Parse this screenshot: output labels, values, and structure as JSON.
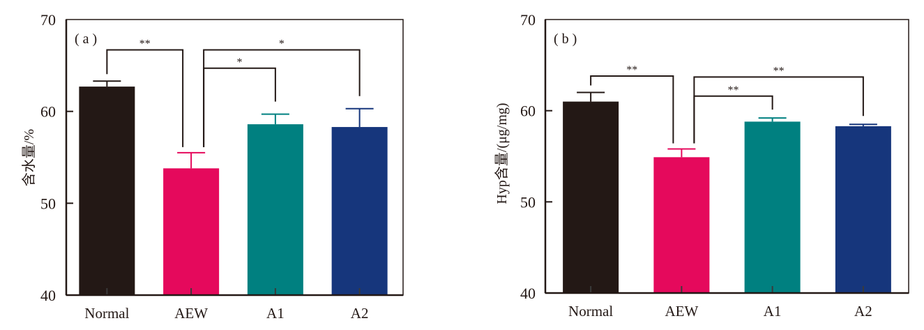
{
  "chart_data": [
    {
      "type": "bar",
      "panel_label": "( a )",
      "title": "",
      "xlabel": "",
      "ylabel": "含水量/%",
      "ylim": [
        40,
        70
      ],
      "yticks": [
        40,
        50,
        60,
        70
      ],
      "yticks_labels": [
        "40",
        "50",
        "60",
        "70"
      ],
      "grid": false,
      "categories": [
        "Normal",
        "AEW",
        "A1",
        "A2"
      ],
      "values": [
        62.7,
        53.8,
        58.6,
        58.3
      ],
      "errors": [
        0.6,
        1.7,
        1.1,
        2.0
      ],
      "colors": [
        "#231815",
        "#e5095c",
        "#008080",
        "#16367c"
      ],
      "significance": [
        {
          "from": "Normal",
          "to": "AEW",
          "label": "**",
          "level": 66.7
        },
        {
          "from": "AEW",
          "to": "A2",
          "label": "*",
          "level": 66.7
        },
        {
          "from": "AEW",
          "to": "A1",
          "label": "*",
          "level": 64.7
        }
      ]
    },
    {
      "type": "bar",
      "panel_label": "( b )",
      "title": "",
      "xlabel": "",
      "ylabel": "Hyp含量/(μg/mg)",
      "ylim": [
        40,
        70
      ],
      "yticks": [
        40,
        50,
        60,
        70
      ],
      "yticks_labels": [
        "40",
        "50",
        "60",
        "70"
      ],
      "grid": false,
      "categories": [
        "Normal",
        "AEW",
        "A1",
        "A2"
      ],
      "values": [
        61.0,
        54.9,
        58.8,
        58.3
      ],
      "errors": [
        1.0,
        0.9,
        0.4,
        0.2
      ],
      "colors": [
        "#231815",
        "#e5095c",
        "#008080",
        "#16367c"
      ],
      "significance": [
        {
          "from": "Normal",
          "to": "AEW",
          "label": "**",
          "level": 63.8
        },
        {
          "from": "AEW",
          "to": "A2",
          "label": "**",
          "level": 63.7
        },
        {
          "from": "AEW",
          "to": "A1",
          "label": "**",
          "level": 61.6
        }
      ]
    }
  ]
}
